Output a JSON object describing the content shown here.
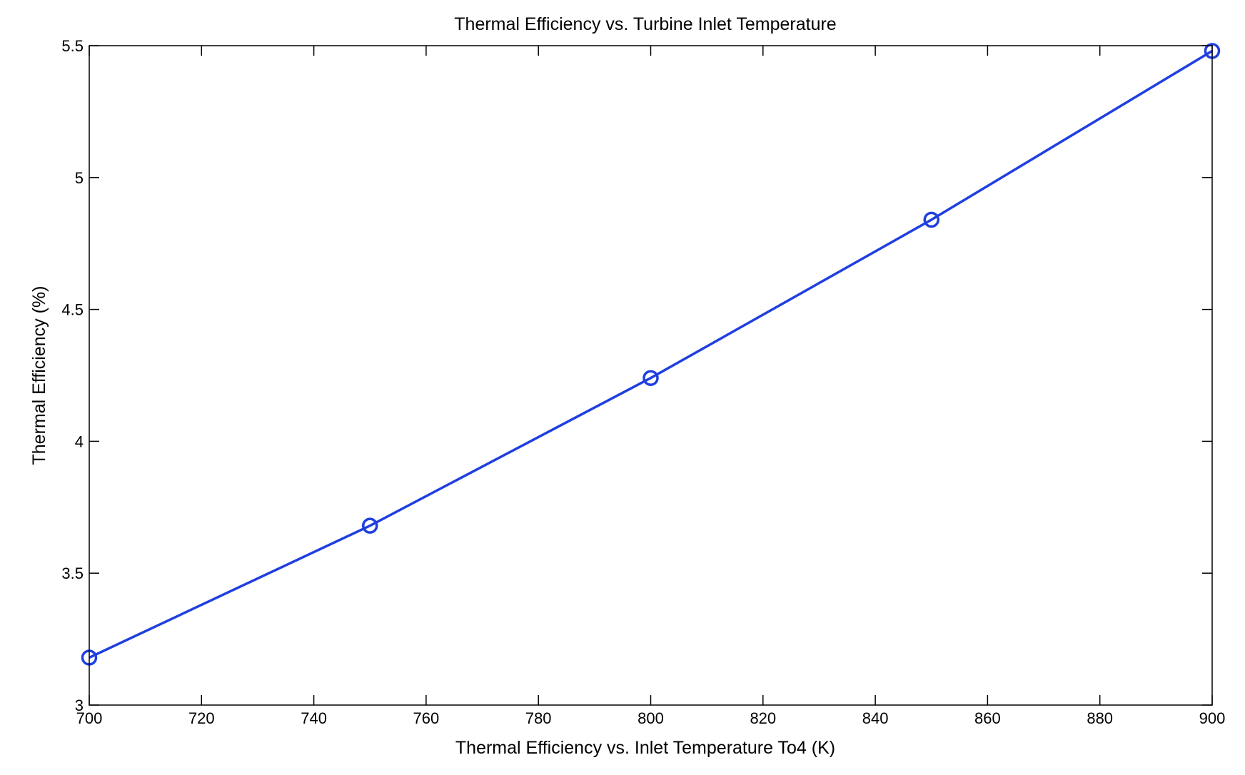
{
  "chart_data": {
    "type": "line",
    "title": "Thermal Efficiency vs. Turbine Inlet Temperature",
    "xlabel": "Thermal Efficiency vs. Inlet Temperature To4 (K)",
    "ylabel": "Thermal Efficiency (%)",
    "xlim": [
      700,
      900
    ],
    "ylim": [
      3,
      5.5
    ],
    "xticks": [
      "700",
      "720",
      "740",
      "760",
      "780",
      "800",
      "820",
      "840",
      "860",
      "880",
      "900"
    ],
    "yticks": [
      "3",
      "3.5",
      "4",
      "4.5",
      "5",
      "5.5"
    ],
    "grid": false,
    "series": [
      {
        "color": "#1f3fe0",
        "marker": "circle",
        "x": [
          700,
          750,
          800,
          850,
          900
        ],
        "y": [
          3.18,
          3.68,
          4.24,
          4.84,
          5.48
        ]
      }
    ]
  }
}
